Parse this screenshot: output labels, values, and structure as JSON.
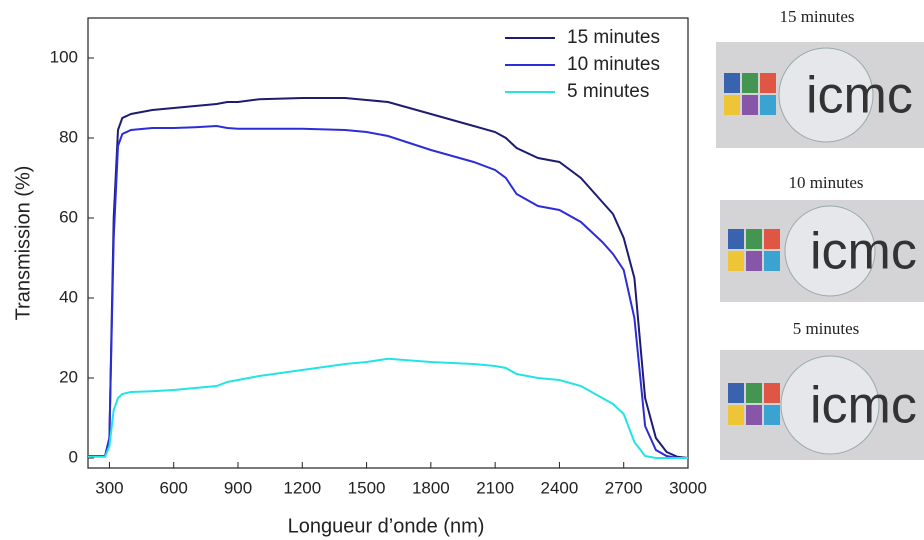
{
  "chart_data": {
    "type": "line",
    "xlabel": "Longueur d’onde (nm)",
    "ylabel": "Transmission (%)",
    "x": [
      200,
      280,
      300,
      320,
      340,
      360,
      400,
      500,
      600,
      700,
      800,
      850,
      900,
      1000,
      1200,
      1400,
      1500,
      1600,
      1800,
      2000,
      2100,
      2150,
      2200,
      2300,
      2400,
      2500,
      2600,
      2650,
      2700,
      2750,
      2800,
      2850,
      2900,
      2950,
      3000
    ],
    "series": [
      {
        "name": "15 minutes",
        "color": "#1c1c72",
        "values": [
          0.5,
          0.5,
          5,
          60,
          82,
          85,
          86,
          87,
          87.5,
          88,
          88.5,
          89,
          89,
          89.7,
          90,
          90,
          89.5,
          89,
          86,
          83,
          81.5,
          80,
          77.5,
          75,
          74,
          70,
          64,
          61,
          55,
          45,
          15,
          5,
          1.5,
          0.3,
          0
        ]
      },
      {
        "name": "10 minutes",
        "color": "#2d2dd8",
        "values": [
          0.5,
          0.5,
          5,
          55,
          78,
          81,
          82,
          82.5,
          82.5,
          82.7,
          83,
          82.5,
          82.3,
          82.3,
          82.3,
          82,
          81.5,
          80.5,
          77,
          74,
          72,
          70,
          66,
          63,
          62,
          59,
          54,
          51,
          47,
          35,
          8,
          2,
          0.5,
          0,
          0
        ]
      },
      {
        "name": "5 minutes",
        "color": "#22e4e4",
        "values": [
          0.3,
          0.3,
          3,
          12,
          15,
          16,
          16.5,
          16.7,
          17,
          17.5,
          18,
          19,
          19.5,
          20.5,
          22,
          23.5,
          24,
          24.8,
          24,
          23.5,
          23,
          22.5,
          21,
          20,
          19.5,
          18,
          15,
          13.5,
          11,
          4,
          0.5,
          0,
          0,
          0,
          0
        ]
      }
    ],
    "xlim": [
      200,
      3000
    ],
    "xticks": [
      300,
      600,
      900,
      1200,
      1500,
      1800,
      2100,
      2400,
      2700,
      3000
    ],
    "ylim": [
      -2.5,
      110
    ],
    "yticks": [
      0,
      20,
      40,
      60,
      80,
      100
    ],
    "legend": "upper right",
    "grid": false
  },
  "photos": [
    {
      "label": "15 minutes",
      "text": "icmc"
    },
    {
      "label": "10 minutes",
      "text": "icmc"
    },
    {
      "label": "5 minutes",
      "text": "icmc"
    }
  ]
}
